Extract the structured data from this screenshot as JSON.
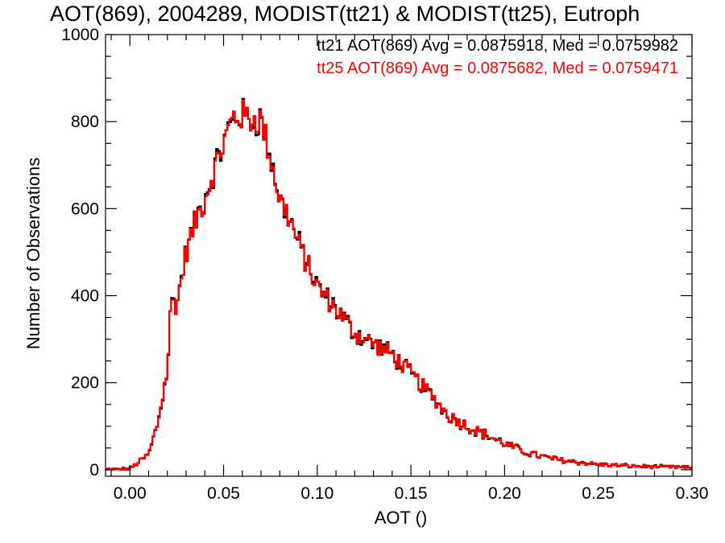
{
  "chart_data": {
    "type": "line",
    "title": "AOT(869), 2004289, MODIST(tt21) & MODIST(tt25), Eutroph",
    "xlabel": "AOT ()",
    "ylabel": "Number of Observations",
    "xlim": [
      -0.013,
      0.3
    ],
    "ylim": [
      -15,
      1000
    ],
    "xticks": [
      0.0,
      0.05,
      0.1,
      0.15,
      0.2,
      0.25,
      0.3
    ],
    "xtick_labels": [
      "0.00",
      "0.05",
      "0.10",
      "0.15",
      "0.20",
      "0.25",
      "0.30"
    ],
    "yticks": [
      0,
      200,
      400,
      600,
      800,
      1000
    ],
    "ytick_labels": [
      "0",
      "200",
      "400",
      "600",
      "800",
      "1000"
    ],
    "grid": false,
    "legend_position": "top-right",
    "bin_width": 0.001,
    "x_control": [
      -0.013,
      0.0,
      0.01,
      0.015,
      0.02,
      0.022,
      0.025,
      0.03,
      0.035,
      0.04,
      0.045,
      0.05,
      0.055,
      0.06,
      0.065,
      0.07,
      0.075,
      0.08,
      0.085,
      0.09,
      0.095,
      0.1,
      0.11,
      0.12,
      0.13,
      0.14,
      0.15,
      0.16,
      0.17,
      0.18,
      0.19,
      0.2,
      0.21,
      0.22,
      0.23,
      0.25,
      0.27,
      0.3
    ],
    "y_control": [
      0,
      2,
      35,
      110,
      230,
      390,
      380,
      500,
      570,
      625,
      690,
      750,
      810,
      815,
      805,
      805,
      720,
      620,
      580,
      520,
      470,
      420,
      370,
      315,
      290,
      265,
      220,
      175,
      125,
      100,
      80,
      60,
      42,
      30,
      22,
      12,
      8,
      5
    ],
    "series": [
      {
        "name": "tt21 AOT(869) Avg = 0.0875918, Med = 0.0759982",
        "color": "#000000",
        "stat_label": "tt21 AOT(869) Avg = 0.0875918, Med = 0.0759982"
      },
      {
        "name": "tt25 AOT(869) Avg = 0.0875682, Med = 0.0759471",
        "color": "#ff0000",
        "stat_label": "tt25 AOT(869) Avg = 0.0875682, Med = 0.0759471"
      }
    ]
  }
}
